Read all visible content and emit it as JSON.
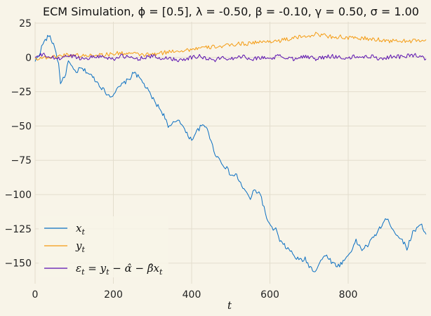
{
  "chart_data": {
    "type": "line",
    "title": "ECM Simulation, ϕ = [0.5], λ = -0.50, β = -0.10, γ = 0.50, σ = 1.00",
    "xlabel": "t",
    "ylabel": "",
    "xlim": [
      0,
      999
    ],
    "ylim": [
      -165,
      26
    ],
    "x_ticks": [
      0,
      200,
      400,
      600,
      800
    ],
    "y_ticks": [
      25,
      0,
      -25,
      -50,
      -75,
      -100,
      -125,
      -150
    ],
    "grid": true,
    "legend_position": "lower-left",
    "series": [
      {
        "name": "x_t",
        "color": "#0a6fc2",
        "x": [
          0,
          10,
          20,
          35,
          50,
          60,
          65,
          75,
          85,
          95,
          105,
          115,
          130,
          150,
          170,
          185,
          195,
          205,
          215,
          225,
          240,
          255,
          260,
          275,
          290,
          305,
          320,
          335,
          340,
          350,
          365,
          375,
          385,
          400,
          410,
          425,
          440,
          450,
          460,
          470,
          480,
          490,
          500,
          515,
          525,
          540,
          550,
          560,
          575,
          585,
          595,
          605,
          615,
          625,
          640,
          655,
          665,
          680,
          690,
          700,
          715,
          730,
          745,
          760,
          775,
          790,
          805,
          820,
          835,
          850,
          865,
          880,
          895,
          905,
          920,
          935,
          950,
          965,
          975,
          985,
          999
        ],
        "values": [
          -3,
          2,
          10,
          16,
          8,
          -5,
          -18,
          -15,
          -3,
          -8,
          -11,
          -8,
          -10,
          -15,
          -22,
          -27,
          -28,
          -25,
          -22,
          -19,
          -16,
          -10,
          -13,
          -18,
          -25,
          -32,
          -38,
          -45,
          -52,
          -49,
          -45,
          -48,
          -55,
          -60,
          -55,
          -50,
          -51,
          -62,
          -70,
          -74,
          -78,
          -81,
          -86,
          -86,
          -92,
          -99,
          -103,
          -97,
          -99,
          -110,
          -120,
          -125,
          -125,
          -134,
          -138,
          -142,
          -146,
          -148,
          -147,
          -152,
          -156,
          -148,
          -144,
          -150,
          -152,
          -148,
          -142,
          -134,
          -140,
          -137,
          -131,
          -125,
          -118,
          -120,
          -128,
          -132,
          -139,
          -128,
          -124,
          -121,
          -129
        ]
      },
      {
        "name": "y_t",
        "color": "#f49b12",
        "x": [
          0,
          20,
          40,
          60,
          80,
          100,
          120,
          150,
          180,
          210,
          240,
          270,
          300,
          320,
          340,
          360,
          380,
          400,
          420,
          440,
          460,
          480,
          500,
          520,
          540,
          560,
          580,
          600,
          620,
          640,
          660,
          680,
          700,
          720,
          740,
          760,
          780,
          800,
          820,
          840,
          860,
          880,
          900,
          920,
          940,
          960,
          980,
          999
        ],
        "values": [
          -1,
          0,
          0,
          1,
          2,
          2,
          1,
          2,
          2,
          3,
          3,
          2,
          2,
          3,
          4,
          5,
          5,
          6,
          7,
          7,
          8,
          8,
          9,
          10,
          10,
          11,
          11,
          12,
          12,
          13,
          14,
          15,
          16,
          17,
          16,
          15,
          15,
          14,
          14,
          14,
          13,
          13,
          12,
          12,
          12,
          12,
          12,
          13
        ]
      },
      {
        "name": "ε_t = y_t − α̂ − β̂x_t",
        "color": "#5a0fb0",
        "x": [
          0,
          20,
          40,
          60,
          80,
          100,
          120,
          140,
          160,
          180,
          200,
          220,
          240,
          260,
          280,
          300,
          320,
          340,
          360,
          380,
          400,
          420,
          440,
          460,
          480,
          500,
          520,
          540,
          560,
          580,
          600,
          620,
          640,
          660,
          680,
          700,
          720,
          740,
          760,
          780,
          800,
          820,
          840,
          860,
          880,
          900,
          920,
          940,
          960,
          980,
          999
        ],
        "values": [
          0,
          2,
          0,
          -1,
          1,
          1,
          -1,
          0,
          1,
          0,
          -1,
          1,
          0,
          -1,
          0,
          1,
          -1,
          0,
          -2,
          -1,
          0,
          1,
          -1,
          -2,
          0,
          -1,
          1,
          0,
          -1,
          0,
          -1,
          1,
          0,
          -1,
          1,
          0,
          -1,
          0,
          1,
          0,
          -1,
          1,
          0,
          1,
          -1,
          0,
          1,
          0,
          2,
          1,
          -1
        ]
      }
    ]
  }
}
